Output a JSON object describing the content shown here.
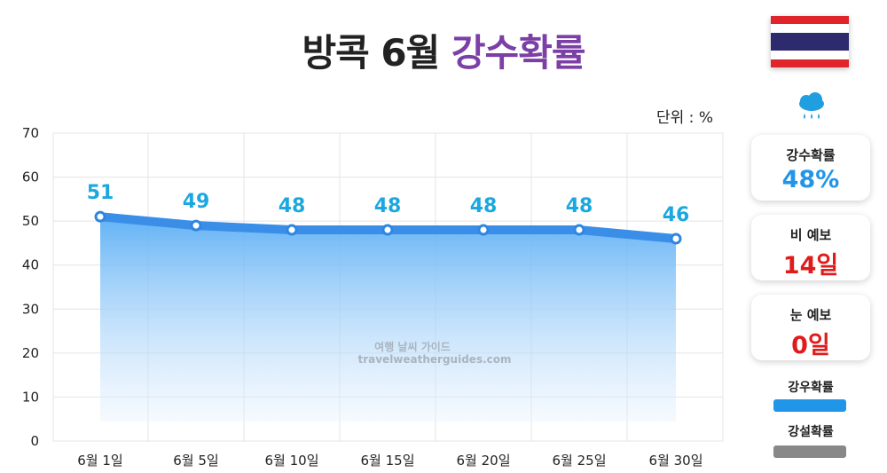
{
  "title": {
    "main": "방콕 6월",
    "accent": "강수확률"
  },
  "unit_label": "단위 : %",
  "watermark": {
    "line1": "여행 날씨 가이드",
    "line2": "travelweatherguides.com"
  },
  "cards": [
    {
      "label": "강수확률",
      "value": "48%",
      "color": "blue"
    },
    {
      "label": "비 예보",
      "value": "14일",
      "color": "red"
    },
    {
      "label": "눈 예보",
      "value": "0일",
      "color": "red"
    }
  ],
  "legend": [
    {
      "label": "강우확률",
      "color": "#2196e8"
    },
    {
      "label": "강설확률",
      "color": "#888888"
    }
  ],
  "icons": {
    "flag": "thailand-flag-icon",
    "weather": "rain-cloud-icon"
  },
  "colors": {
    "line": "#3b8ee8",
    "fill_top": "#5aaef5",
    "label": "#1ba8e0"
  },
  "chart_data": {
    "type": "area",
    "title": "방콕 6월 강수확률",
    "categories": [
      "6월 1일",
      "6월 5일",
      "6월 10일",
      "6월 15일",
      "6월 20일",
      "6월 25일",
      "6월 30일"
    ],
    "series": [
      {
        "name": "강우확률",
        "values": [
          51,
          49,
          48,
          48,
          48,
          48,
          46
        ]
      }
    ],
    "ylim": [
      0,
      70
    ],
    "yticks": [
      0,
      10,
      20,
      30,
      40,
      50,
      60,
      70
    ],
    "ylabel": "",
    "xlabel": "",
    "grid": true
  }
}
